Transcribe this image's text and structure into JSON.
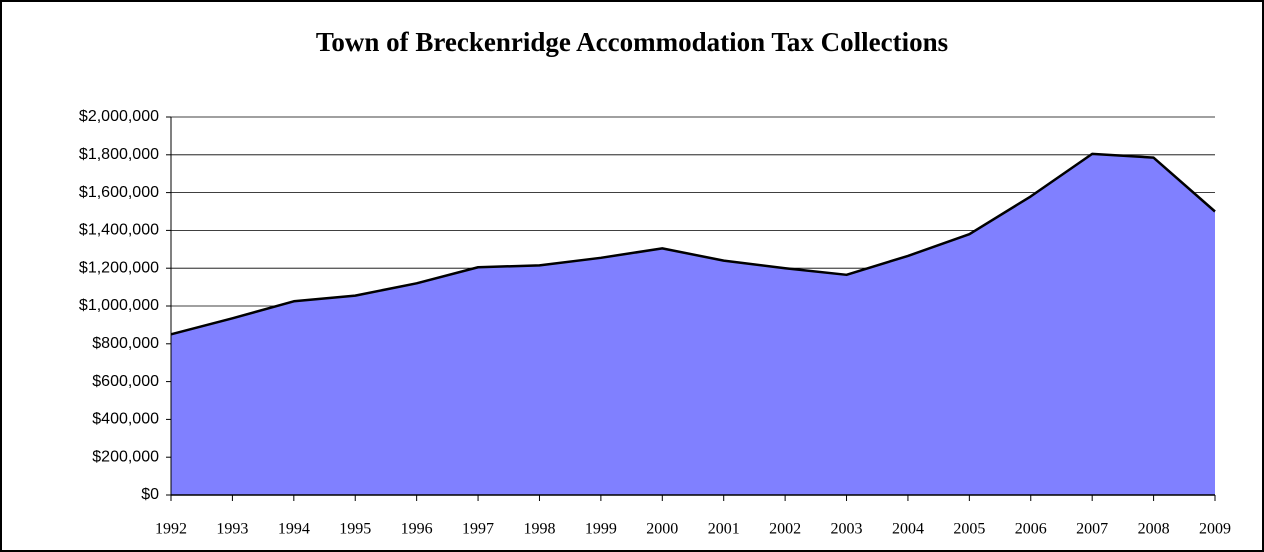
{
  "chart_data": {
    "type": "area",
    "title": "Town of Breckenridge Accommodation Tax Collections",
    "categories": [
      "1992",
      "1993",
      "1994",
      "1995",
      "1996",
      "1997",
      "1998",
      "1999",
      "2000",
      "2001",
      "2002",
      "2003",
      "2004",
      "2005",
      "2006",
      "2007",
      "2008",
      "2009"
    ],
    "values": [
      850000,
      935000,
      1025000,
      1055000,
      1120000,
      1205000,
      1215000,
      1255000,
      1305000,
      1240000,
      1200000,
      1165000,
      1265000,
      1380000,
      1580000,
      1805000,
      1785000,
      1500000
    ],
    "color": "#8080ff",
    "ylim": [
      0,
      2000000
    ],
    "yticks": [
      {
        "value": 0,
        "label": "$0"
      },
      {
        "value": 200000,
        "label": "$200,000"
      },
      {
        "value": 400000,
        "label": "$400,000"
      },
      {
        "value": 600000,
        "label": "$600,000"
      },
      {
        "value": 800000,
        "label": "$800,000"
      },
      {
        "value": 1000000,
        "label": "$1,000,000"
      },
      {
        "value": 1200000,
        "label": "$1,200,000"
      },
      {
        "value": 1400000,
        "label": "$1,400,000"
      },
      {
        "value": 1600000,
        "label": "$1,600,000"
      },
      {
        "value": 1800000,
        "label": "$1,800,000"
      },
      {
        "value": 2000000,
        "label": "$2,000,000"
      }
    ],
    "grid": true
  }
}
